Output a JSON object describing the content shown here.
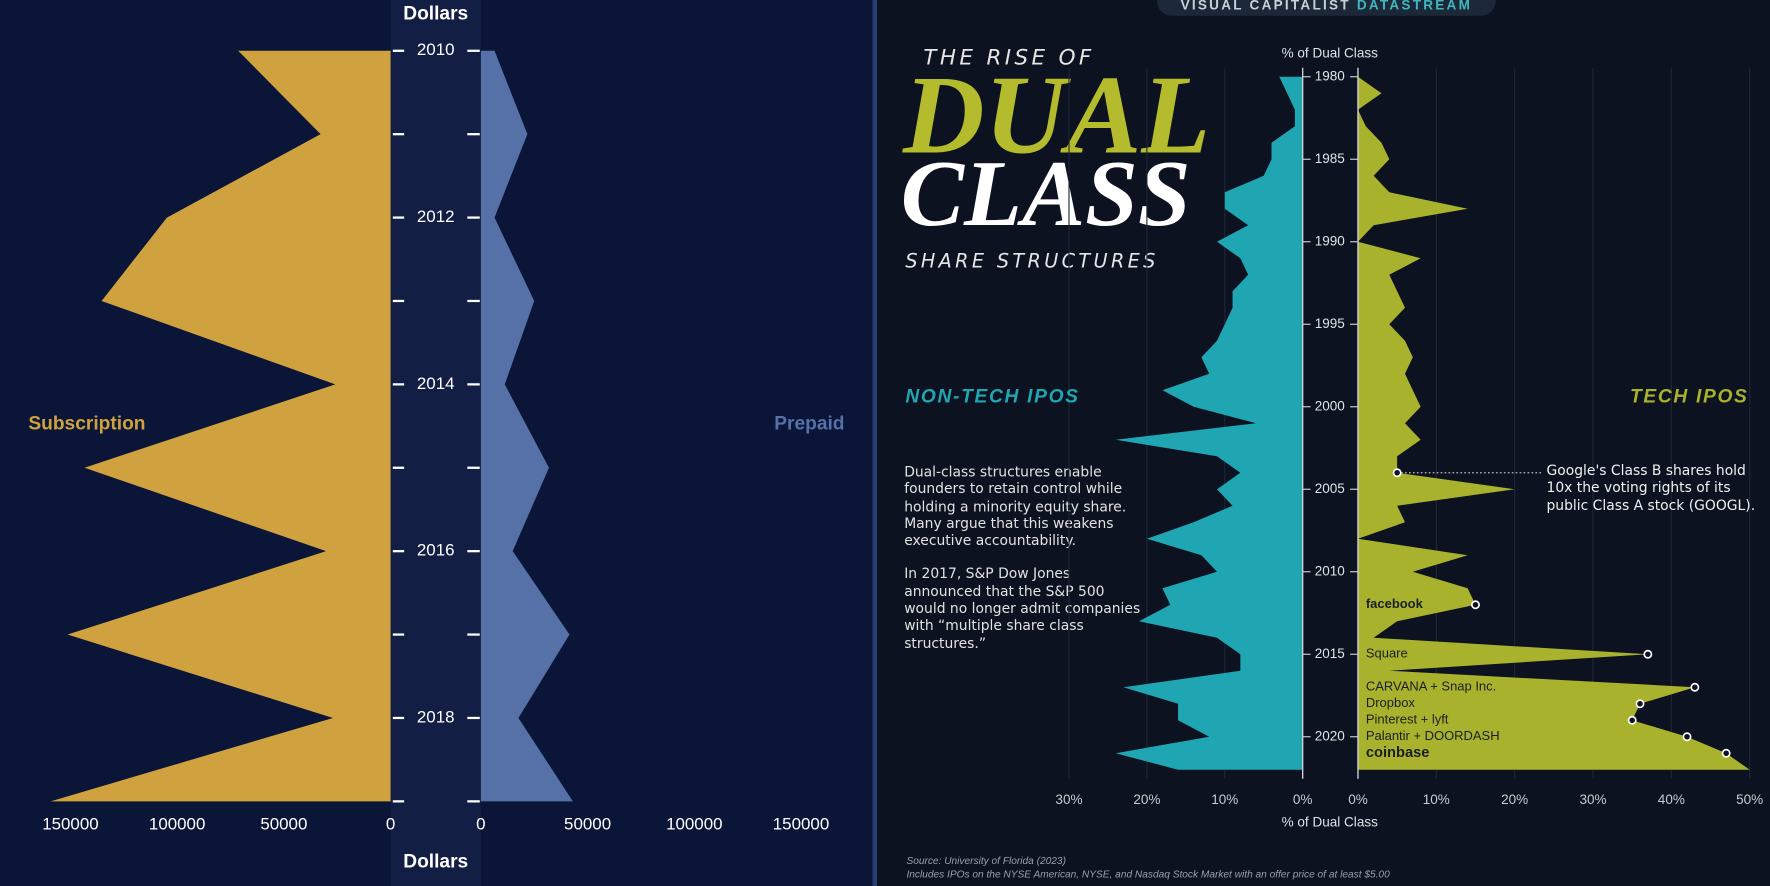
{
  "chart_data": [
    {
      "type": "butterfly-area",
      "x_title": "Dollars",
      "categories": [
        "2010",
        null,
        "2012",
        null,
        "2014",
        null,
        "2016",
        null,
        "2018",
        null
      ],
      "series": [
        {
          "name": "Subscription",
          "color": "#cfa23f",
          "values": [
            71400,
            32800,
            104800,
            135400,
            25900,
            143400,
            30200,
            151300,
            27000,
            159300
          ]
        },
        {
          "name": "Prepaid",
          "color": "#5670a8",
          "values": [
            6400,
            21800,
            6400,
            25000,
            11200,
            31900,
            14900,
            41500,
            17600,
            43100
          ]
        }
      ],
      "xlim": [
        0,
        183000
      ],
      "xticks": [
        0,
        50000,
        100000,
        150000
      ]
    },
    {
      "type": "butterfly-area",
      "header": [
        "VISUAL CAPITALIST",
        "DATASTREAM"
      ],
      "title": [
        "THE RISE OF",
        "DUAL",
        "CLASS",
        "SHARE STRUCTURES"
      ],
      "x_title": "% of Dual Class",
      "y": [
        1980,
        1981,
        1982,
        1983,
        1984,
        1985,
        1986,
        1987,
        1988,
        1989,
        1990,
        1991,
        1992,
        1993,
        1994,
        1995,
        1996,
        1997,
        1998,
        1999,
        2000,
        2001,
        2002,
        2003,
        2004,
        2005,
        2006,
        2007,
        2008,
        2009,
        2010,
        2011,
        2012,
        2013,
        2014,
        2015,
        2016,
        2017,
        2018,
        2019,
        2020,
        2021,
        2022
      ],
      "ylim": [
        1980,
        2022
      ],
      "yticks": [
        1980,
        1985,
        1990,
        1995,
        2000,
        2005,
        2010,
        2015,
        2020
      ],
      "series": [
        {
          "name": "NON-TECH IPOS",
          "color": "#1fa6b2",
          "xlim": [
            0,
            30
          ],
          "xticks": [
            {
              "value": 30,
              "label": "30%"
            },
            {
              "value": 20,
              "label": "20%"
            },
            {
              "value": 10,
              "label": "10%"
            },
            {
              "value": 0,
              "label": "0%"
            }
          ],
          "values": [
            3,
            2,
            1,
            1,
            4,
            4,
            5,
            10,
            10,
            7,
            11,
            8,
            7,
            9,
            9,
            10,
            11,
            13,
            12,
            18,
            14,
            6,
            24,
            11,
            8,
            11,
            9,
            14,
            20,
            13,
            11,
            18,
            17,
            21,
            11,
            8,
            8,
            23,
            16,
            16,
            12,
            24,
            16
          ]
        },
        {
          "name": "TECH IPOS",
          "color": "#a8b22d",
          "xlim": [
            0,
            50
          ],
          "xticks": [
            {
              "value": 0,
              "label": "0%"
            },
            {
              "value": 10,
              "label": "10%"
            },
            {
              "value": 20,
              "label": "20%"
            },
            {
              "value": 30,
              "label": "30%"
            },
            {
              "value": 40,
              "label": "40%"
            },
            {
              "value": 50,
              "label": "50%"
            }
          ],
          "values": [
            0,
            3,
            0,
            1,
            3,
            4,
            2,
            4,
            14,
            2,
            0,
            8,
            4,
            5,
            6,
            4,
            6,
            7,
            6,
            7,
            8,
            6,
            8,
            5,
            5,
            20,
            5,
            6,
            0,
            14,
            7,
            14,
            15,
            5,
            2,
            37,
            4,
            43,
            36,
            35,
            42,
            47,
            50
          ]
        }
      ],
      "annotations": [
        {
          "text": "Google's Class B shares hold 10x the voting rights of its public Class A stock (GOOGL).",
          "x": 2004
        },
        {
          "text": "facebook",
          "x": 2012
        },
        {
          "text": "Square",
          "x": 2015
        },
        {
          "text": "CARVANA + Snap Inc.",
          "x": 2017
        },
        {
          "text": "Dropbox",
          "x": 2018
        },
        {
          "text": "Pinterest + lyft",
          "x": 2019
        },
        {
          "text": "Palantir + DOORDASH",
          "x": 2020
        },
        {
          "text": "coinbase",
          "x": 2021
        }
      ],
      "description": [
        "Dual-class structures enable founders to retain control while holding a minority equity share. Many argue that this weakens executive accountability.",
        "In 2017, S&P Dow Jones announced that the S&P 500 would no longer admit companies with “multiple share class structures.”"
      ],
      "source": [
        "Source: University of Florida (2023)",
        "Includes IPOs on the NYSE American, NYSE, and Nasdaq Stock Market with an offer price of at least $5.00"
      ]
    }
  ]
}
